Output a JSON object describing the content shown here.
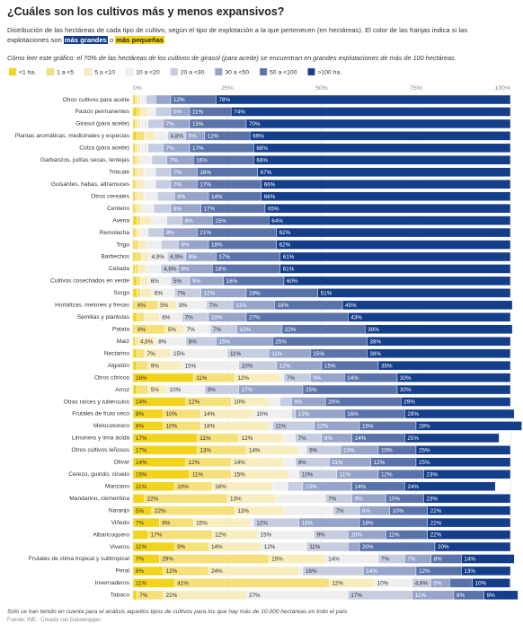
{
  "chart_data": {
    "type": "bar",
    "orientation": "horizontal",
    "stacked": true,
    "title": "¿Cuáles son los cultivos más y menos expansivos?",
    "subtitle": [
      "Distribución de las hectáreas de cada tipo de cultivo, según el tipo de explotación a la que pertenecen (en hectáreas). El color de las franjas indica si las explotaciones son",
      "más grandes",
      "o",
      "más pequeñas"
    ],
    "note": "Cómo leer este gráfico: el 70% de las hectáreas de los cultivos de girasol (para aceite) se encuentran en grandes explotaciones de más de 100 hectáreas.",
    "footnote": "Sólo se han tenido en cuenta para el análisis aquellos tipos de cultivos para los que hay más de 10.000 hectáreas en todo el país",
    "source": "Fuente: INE · Creado con Datawrapper",
    "legend": "top",
    "grid": true,
    "xlim": [
      0,
      100
    ],
    "xticks": [
      {
        "value": 0,
        "label": "0%"
      },
      {
        "value": 25,
        "label": "25%"
      },
      {
        "value": 50,
        "label": "50%"
      },
      {
        "value": 75,
        "label": "75%"
      },
      {
        "value": 100,
        "label": "100%"
      }
    ],
    "categories": [
      "Otros cultivos para aceite",
      "Pastos permanentes",
      "Girasol (para aceite)",
      "Plantas aromáticas, medicinales y especias",
      "Colza (para aceite)",
      "Garbanzos, judías secas, lentejas",
      "Triticale",
      "Guisantes, habas, altramuces",
      "Otros cereales",
      "Centeno",
      "Avena",
      "Remolacha",
      "Trigo",
      "Barbechos",
      "Cebada",
      "Cultivos cosechados en verde",
      "Sorgo",
      "Hortalizas, melones y fresas",
      "Semillas y plántulas",
      "Patata",
      "Maíz",
      "Nectarino",
      "Algodón",
      "Otros cítricos",
      "Arroz",
      "Otras raíces y tubérculos",
      "Frutales de fruto seco",
      "Melocotonero",
      "Limonero y lima ácida",
      "Otros cultivos leñosos",
      "Olivar",
      "Cerezo, guindo, ciruelo",
      "Manzano",
      "Mandarino, clementina",
      "Naranjo",
      "Viñedo",
      "Albaricoquero",
      "Viveros",
      "Frutales de clima tropical y subtropical",
      "Peral",
      "Invernaderos",
      "Tabaco"
    ],
    "series": [
      {
        "name": "<1 ha.",
        "color": "#f2d41c",
        "values": [
          0.5,
          1,
          0.5,
          1,
          0.5,
          0.5,
          0.5,
          0.5,
          0.5,
          0.5,
          1,
          0.5,
          0.5,
          0.7,
          0.5,
          1,
          1,
          0.5,
          1,
          0.5,
          0.5,
          1,
          1,
          16,
          1,
          14,
          8,
          8,
          17,
          17,
          14,
          15,
          11,
          3,
          5,
          7,
          4,
          11,
          7,
          8,
          11,
          1
        ],
        "value_labels": [
          null,
          null,
          null,
          null,
          null,
          null,
          null,
          null,
          null,
          null,
          null,
          null,
          null,
          null,
          null,
          null,
          null,
          null,
          null,
          null,
          null,
          null,
          null,
          "16%",
          null,
          "14%",
          "8%",
          "8%",
          "17%",
          "17%",
          "14%",
          "15%",
          "11%",
          null,
          "5%",
          "7%",
          null,
          "11%",
          "7%",
          "8%",
          "11%",
          null
        ]
      },
      {
        "name": "1 a <5",
        "color": "#f5e07a",
        "values": [
          0.5,
          1,
          0.5,
          2,
          0.5,
          0.5,
          0.5,
          0.5,
          0.5,
          0.5,
          1,
          0.5,
          1,
          1.5,
          1,
          1,
          1,
          6,
          2,
          8,
          0.7,
          2,
          3,
          11,
          3,
          12,
          10,
          10,
          11,
          13,
          12,
          11,
          10,
          22,
          22,
          9,
          17,
          9,
          29,
          12,
          41,
          7
        ],
        "value_labels": [
          null,
          null,
          null,
          null,
          null,
          null,
          null,
          null,
          null,
          null,
          null,
          null,
          null,
          null,
          null,
          null,
          null,
          "6%",
          null,
          "8%",
          null,
          null,
          null,
          "11%",
          null,
          "12%",
          "10%",
          "10%",
          "11%",
          "13%",
          "12%",
          "11%",
          "10%",
          "22%",
          "22%",
          "9%",
          "17%",
          "9%",
          "29%",
          "12%",
          "41%",
          "7%"
        ]
      },
      {
        "name": "5 a <10",
        "color": "#f7edbe",
        "values": [
          1,
          2,
          1,
          3,
          1,
          1,
          2,
          2,
          2,
          1.5,
          3,
          1,
          2,
          2,
          2,
          2,
          3,
          5,
          4,
          5,
          4.8,
          7,
          9,
          12,
          5,
          10,
          14,
          18,
          12,
          14,
          14,
          15,
          16,
          13,
          13,
          15,
          12,
          14,
          15,
          24,
          12,
          22
        ],
        "value_labels": [
          null,
          null,
          null,
          null,
          null,
          null,
          null,
          null,
          null,
          null,
          null,
          null,
          null,
          null,
          null,
          null,
          null,
          "5%",
          null,
          "5%",
          "4,8%",
          "7%",
          "9%",
          "12%",
          "5%",
          "10%",
          "14%",
          "18%",
          "12%",
          "14%",
          "14%",
          "15%",
          "16%",
          "13%",
          "13%",
          "15%",
          "12%",
          "14%",
          "15%",
          "24%",
          "12%",
          "22%"
        ]
      },
      {
        "name": "10 a <20",
        "color": "#efefef",
        "values": [
          1.5,
          2,
          2,
          3.2,
          2,
          3,
          3,
          3,
          3.5,
          3,
          4,
          2,
          4,
          4.9,
          3.9,
          6,
          6,
          8,
          6,
          7,
          8,
          15,
          15,
          1,
          10,
          3,
          10,
          1,
          3,
          2,
          3,
          3,
          4,
          13,
          13,
          1,
          15,
          12,
          14,
          1,
          10,
          27
        ],
        "value_labels": [
          null,
          null,
          null,
          null,
          null,
          null,
          null,
          null,
          null,
          null,
          null,
          null,
          null,
          "4,9%",
          null,
          "6%",
          "6%",
          "8%",
          "6%",
          "7%",
          "8%",
          "15%",
          "15%",
          null,
          "10%",
          null,
          "10%",
          null,
          null,
          null,
          null,
          null,
          null,
          null,
          null,
          null,
          "15%",
          "12%",
          "14%",
          null,
          "10%",
          "27%"
        ]
      },
      {
        "name": "20 a <30",
        "color": "#c6cde1",
        "values": [
          2.5,
          4,
          4,
          4.8,
          4,
          4,
          4,
          4,
          4.5,
          4.5,
          4,
          4,
          4.5,
          4.9,
          4.6,
          5,
          7,
          7,
          7,
          7,
          8,
          11,
          10,
          7,
          9,
          3,
          1,
          11,
          7,
          9,
          9,
          10,
          4,
          7,
          7,
          12,
          9,
          11,
          7,
          16,
          4.9,
          17
        ],
        "value_labels": [
          null,
          null,
          null,
          "4,8%",
          null,
          null,
          null,
          null,
          null,
          null,
          null,
          null,
          null,
          "4,9%",
          "4,6%",
          "5%",
          "7%",
          "7%",
          "7%",
          "7%",
          "8%",
          "11%",
          "10%",
          "7%",
          "9%",
          null,
          null,
          "11%",
          "7%",
          "9%",
          "9%",
          "10%",
          null,
          "7%",
          "7%",
          "12%",
          "9%",
          "11%",
          "7%",
          "16%",
          "4,9%",
          "17%"
        ]
      },
      {
        "name": "30 a <50",
        "color": "#96a4ca",
        "values": [
          4,
          5,
          7,
          5,
          7,
          7,
          7,
          7,
          9,
          8,
          8,
          9,
          8,
          8,
          9,
          9,
          12,
          11,
          10,
          12,
          15,
          11,
          12,
          9,
          17,
          9,
          13,
          12,
          8,
          10,
          11,
          11,
          13,
          9,
          8,
          16,
          10,
          3,
          7,
          14,
          5,
          11
        ],
        "value_labels": [
          null,
          "5%",
          "7%",
          "5%",
          "7%",
          "7%",
          "7%",
          "7%",
          "9%",
          "8%",
          "8%",
          "9%",
          "8%",
          "8%",
          "9%",
          "9%",
          "12%",
          "11%",
          "10%",
          "12%",
          "15%",
          "11%",
          "12%",
          "9%",
          "17%",
          "9%",
          "13%",
          "12%",
          "8%",
          "10%",
          "11%",
          "11%",
          "13%",
          "9%",
          "8%",
          "16%",
          "10%",
          null,
          "7%",
          "14%",
          "5%",
          "11%"
        ]
      },
      {
        "name": "50 a <100",
        "color": "#5a72aa",
        "values": [
          12,
          11,
          15,
          12,
          17,
          16,
          16,
          17,
          14,
          17,
          15,
          21,
          18,
          17,
          18,
          16,
          19,
          18,
          27,
          22,
          25,
          15,
          15,
          14,
          25,
          20,
          16,
          15,
          14,
          10,
          12,
          12,
          14,
          10,
          10,
          18,
          11,
          20,
          8,
          12,
          6,
          8
        ],
        "value_labels": [
          "12%",
          "11%",
          "15%",
          "12%",
          "17%",
          "16%",
          "16%",
          "17%",
          "14%",
          "17%",
          "15%",
          "21%",
          "18%",
          "17%",
          "18%",
          "16%",
          "19%",
          "18%",
          "27%",
          "22%",
          "25%",
          "15%",
          "15%",
          "14%",
          "25%",
          "20%",
          "16%",
          "15%",
          "14%",
          "10%",
          "12%",
          "12%",
          "14%",
          "10%",
          "10%",
          "18%",
          "11%",
          "20%",
          "8%",
          "12%",
          null,
          "8%"
        ]
      },
      {
        "name": ">100 ha.",
        "color": "#153e8a",
        "values": [
          78,
          74,
          70,
          69,
          68,
          68,
          67,
          66,
          66,
          65,
          64,
          62,
          62,
          61,
          61,
          60,
          51,
          45,
          43,
          39,
          38,
          38,
          35,
          30,
          30,
          29,
          29,
          28,
          25,
          25,
          25,
          23,
          24,
          23,
          22,
          22,
          22,
          20,
          14,
          13,
          10,
          9
        ],
        "value_labels": [
          "78%",
          "74%",
          "70%",
          "69%",
          "68%",
          "68%",
          "67%",
          "66%",
          "66%",
          "65%",
          "64%",
          "62%",
          "62%",
          "61%",
          "61%",
          "60%",
          "51%",
          "45%",
          "43%",
          "39%",
          "38%",
          "38%",
          "35%",
          "30%",
          "30%",
          "29%",
          "29%",
          "28%",
          "25%",
          "25%",
          "25%",
          "23%",
          "24%",
          "23%",
          "22%",
          "22%",
          "22%",
          "20%",
          "14%",
          "13%",
          "10%",
          "9%"
        ]
      }
    ]
  }
}
